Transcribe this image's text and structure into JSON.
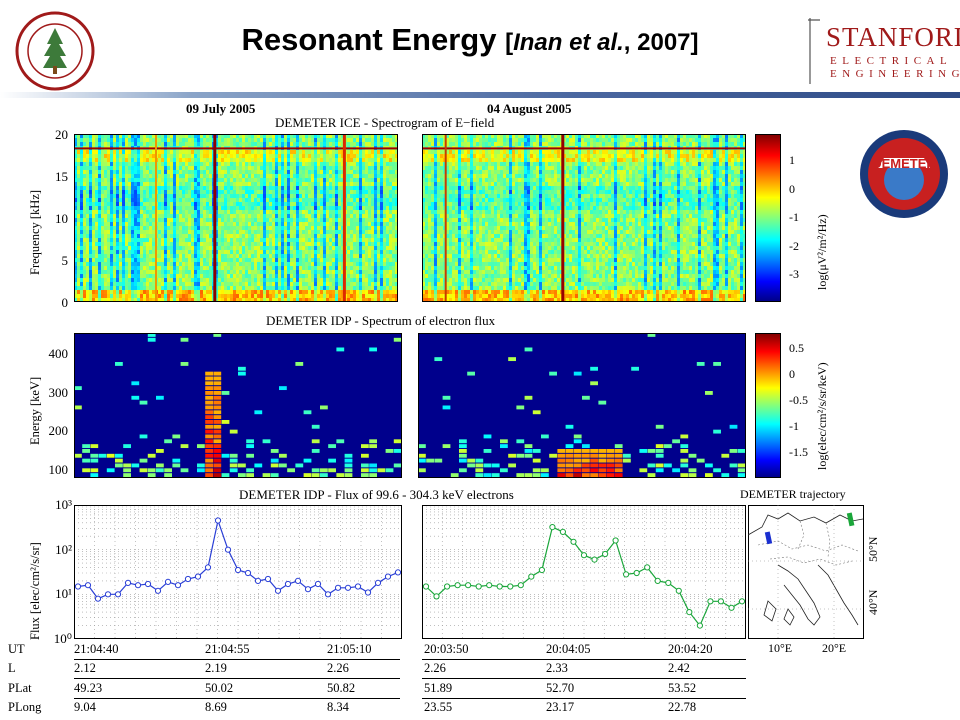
{
  "slide": {
    "title": "Resonant Energy",
    "cite_open": "[",
    "cite_authors": "Inan et al.",
    "cite_year": ", 2007]"
  },
  "branding": {
    "left_logo_icon": "stanford-seal-icon",
    "right_logo_main": "STANFORD",
    "right_logo_line2": "ELECTRICAL",
    "right_logo_line3": "ENGINEERING",
    "mission_logo_icon": "demeter-mission-logo-icon",
    "mission_logo_text": "DEMETER",
    "colors": {
      "stanford_red": "#a01a1a",
      "rule_blue": "#2d4a85"
    }
  },
  "panel_dates": {
    "left": "09 July 2005",
    "right": "04 August 2005"
  },
  "chart_data": [
    {
      "type": "heatmap",
      "title": "DEMETER ICE - Spectrogram of E−field",
      "ylabel": "Frequency [kHz]",
      "ylim": [
        0,
        20
      ],
      "yticks": [
        "20",
        "15",
        "10",
        "5",
        "0"
      ],
      "colorbar_label": "log(μV²/m²/Hz)",
      "colorbar_ticks": [
        "1",
        "0",
        "-1",
        "-2",
        "-3"
      ],
      "panels": [
        "09 July 2005",
        "04 August 2005"
      ]
    },
    {
      "type": "heatmap",
      "title": "DEMETER IDP - Spectrum of electron flux",
      "ylabel": "Energy [keV]",
      "ylim": [
        80,
        460
      ],
      "yticks": [
        "400",
        "300",
        "200",
        "100"
      ],
      "colorbar_label": "log(elec/cm²/s/sr/keV)",
      "colorbar_ticks": [
        "0.5",
        "0",
        "-0.5",
        "-1",
        "-1.5"
      ],
      "panels": [
        "09 July 2005",
        "04 August 2005"
      ]
    },
    {
      "type": "line",
      "title": "DEMETER IDP - Flux of 99.6 - 304.3 keV electrons",
      "ylabel": "Flux [elec/cm²/s/sr]",
      "yscale": "log",
      "ylim": [
        1,
        1000
      ],
      "yticks": [
        "10³",
        "10²",
        "10¹",
        "10⁰"
      ],
      "series": [
        {
          "color": "#2a3fd6",
          "x_start": "21:04:40",
          "x_end": "21:05:11",
          "values": [
            15,
            16,
            8,
            10,
            10,
            18,
            16,
            17,
            12,
            19,
            16,
            22,
            25,
            40,
            450,
            100,
            35,
            30,
            20,
            22,
            12,
            17,
            20,
            13,
            17,
            10,
            14,
            14,
            15,
            11,
            18,
            25,
            31
          ]
        },
        {
          "color": "#1aa63a",
          "x_start": "20:03:50",
          "x_end": "20:04:20",
          "values": [
            15,
            9,
            15,
            16,
            16,
            15,
            16,
            15,
            15,
            16,
            25,
            35,
            320,
            250,
            150,
            75,
            60,
            80,
            160,
            28,
            30,
            40,
            20,
            18,
            12,
            4,
            2,
            7,
            7,
            5,
            7
          ]
        }
      ]
    }
  ],
  "trajectory": {
    "title": "DEMETER trajectory",
    "lat_labels": [
      "50°N",
      "40°N"
    ],
    "lon_labels": [
      "10°E",
      "20°E"
    ],
    "marker_colors": [
      "#1a2fd0",
      "#1aa63a"
    ]
  },
  "table": {
    "row_labels": [
      "UT",
      "L",
      "PLat",
      "PLong"
    ],
    "left": [
      [
        "21:04:40",
        "21:04:55",
        "21:05:10"
      ],
      [
        "2.12",
        "2.19",
        "2.26"
      ],
      [
        "49.23",
        "50.02",
        "50.82"
      ],
      [
        "9.04",
        "8.69",
        "8.34"
      ]
    ],
    "right": [
      [
        "20:03:50",
        "20:04:05",
        "20:04:20"
      ],
      [
        "2.26",
        "2.33",
        "2.42"
      ],
      [
        "51.89",
        "52.70",
        "53.52"
      ],
      [
        "23.55",
        "23.17",
        "22.78"
      ]
    ]
  }
}
